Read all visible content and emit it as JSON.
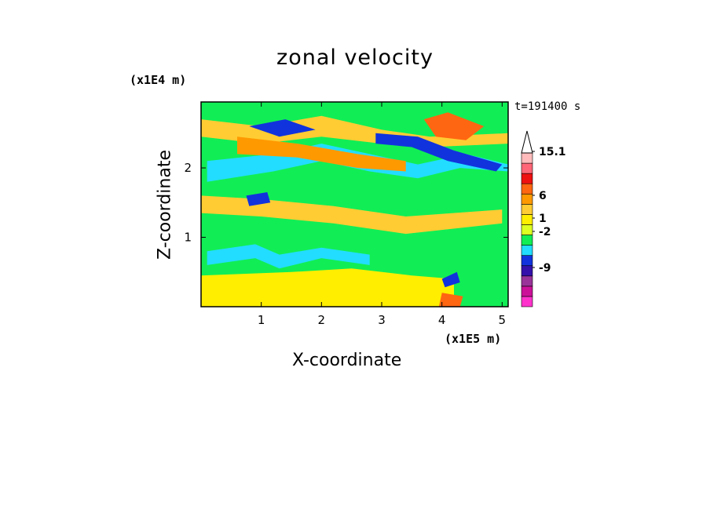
{
  "chart_data": {
    "type": "heatmap",
    "title": "zonal velocity",
    "xlabel": "X-coordinate",
    "ylabel": "Z-coordinate",
    "x_exponent_label": "(x1E5 m)",
    "y_exponent_label": "(x1E4 m)",
    "time_label": "t=191400 s",
    "xlim": [
      0,
      5.1
    ],
    "ylim": [
      0,
      2.95
    ],
    "x_ticks": [
      "1",
      "2",
      "3",
      "4",
      "5"
    ],
    "y_ticks": [
      "1",
      "2"
    ],
    "colorbar": {
      "labels": [
        "15.1",
        "6",
        "1",
        "-2",
        "-9"
      ],
      "label_values": [
        15.1,
        6,
        1,
        -2,
        -9
      ],
      "extend": "max",
      "colors": [
        "#ff33cc",
        "#cc1199",
        "#993399",
        "#3311aa",
        "#1133dd",
        "#22ddff",
        "#11ee55",
        "#ddff22",
        "#ffee00",
        "#ffcc33",
        "#ff9900",
        "#ff6611",
        "#ee1111",
        "#ff6677",
        "#ffbbbb",
        "#ffffff"
      ]
    },
    "bands": [
      {
        "value": -2.5,
        "color": "#22ddff",
        "points": [
          [
            0.1,
            2.1
          ],
          [
            1.2,
            2.2
          ],
          [
            2.0,
            2.35
          ],
          [
            2.8,
            2.2
          ],
          [
            3.6,
            2.05
          ],
          [
            4.4,
            2.2
          ],
          [
            5.1,
            2.05
          ],
          [
            5.1,
            1.95
          ],
          [
            4.3,
            2.0
          ],
          [
            3.6,
            1.85
          ],
          [
            2.8,
            1.95
          ],
          [
            2.0,
            2.1
          ],
          [
            1.2,
            1.95
          ],
          [
            0.1,
            1.8
          ]
        ]
      },
      {
        "value": 3.0,
        "color": "#ffcc33",
        "points": [
          [
            0.0,
            2.7
          ],
          [
            1.0,
            2.6
          ],
          [
            2.0,
            2.75
          ],
          [
            3.0,
            2.55
          ],
          [
            3.8,
            2.45
          ],
          [
            5.1,
            2.5
          ],
          [
            5.1,
            2.35
          ],
          [
            3.8,
            2.3
          ],
          [
            3.0,
            2.35
          ],
          [
            2.0,
            2.45
          ],
          [
            1.0,
            2.35
          ],
          [
            0.0,
            2.45
          ]
        ]
      },
      {
        "value": 4.5,
        "color": "#ff9900",
        "points": [
          [
            0.6,
            2.45
          ],
          [
            1.6,
            2.35
          ],
          [
            2.6,
            2.2
          ],
          [
            3.4,
            2.1
          ],
          [
            3.4,
            1.95
          ],
          [
            2.6,
            2.0
          ],
          [
            1.6,
            2.15
          ],
          [
            0.6,
            2.2
          ]
        ]
      },
      {
        "value": 3.0,
        "color": "#ffcc33",
        "points": [
          [
            0.0,
            1.6
          ],
          [
            1.0,
            1.55
          ],
          [
            2.2,
            1.45
          ],
          [
            3.4,
            1.3
          ],
          [
            5.0,
            1.4
          ],
          [
            5.0,
            1.2
          ],
          [
            3.4,
            1.05
          ],
          [
            2.2,
            1.2
          ],
          [
            1.0,
            1.3
          ],
          [
            0.0,
            1.35
          ]
        ]
      },
      {
        "value": 1.5,
        "color": "#ffee00",
        "points": [
          [
            0.0,
            0.45
          ],
          [
            1.5,
            0.5
          ],
          [
            2.5,
            0.55
          ],
          [
            3.5,
            0.45
          ],
          [
            4.2,
            0.4
          ],
          [
            4.2,
            0.0
          ],
          [
            0.0,
            0.0
          ]
        ]
      },
      {
        "value": -2.5,
        "color": "#22ddff",
        "points": [
          [
            0.1,
            0.8
          ],
          [
            0.9,
            0.9
          ],
          [
            1.3,
            0.75
          ],
          [
            2.0,
            0.85
          ],
          [
            2.8,
            0.75
          ],
          [
            2.8,
            0.6
          ],
          [
            2.0,
            0.7
          ],
          [
            1.3,
            0.55
          ],
          [
            0.9,
            0.7
          ],
          [
            0.1,
            0.6
          ]
        ]
      },
      {
        "value": 9.0,
        "color": "#ff6611",
        "points": [
          [
            3.7,
            2.7
          ],
          [
            4.1,
            2.8
          ],
          [
            4.7,
            2.6
          ],
          [
            4.4,
            2.4
          ],
          [
            3.9,
            2.45
          ]
        ]
      },
      {
        "value": -6.0,
        "color": "#1133dd",
        "points": [
          [
            0.8,
            2.6
          ],
          [
            1.4,
            2.7
          ],
          [
            1.9,
            2.55
          ],
          [
            1.3,
            2.45
          ]
        ]
      },
      {
        "value": -6.0,
        "color": "#1133dd",
        "points": [
          [
            2.9,
            2.5
          ],
          [
            3.6,
            2.45
          ],
          [
            4.2,
            2.25
          ],
          [
            5.0,
            2.05
          ],
          [
            4.9,
            1.95
          ],
          [
            4.1,
            2.1
          ],
          [
            3.5,
            2.3
          ],
          [
            2.9,
            2.35
          ]
        ]
      },
      {
        "value": -6.0,
        "color": "#1133dd",
        "points": [
          [
            0.75,
            1.6
          ],
          [
            1.1,
            1.65
          ],
          [
            1.15,
            1.5
          ],
          [
            0.8,
            1.45
          ]
        ]
      },
      {
        "value": -6.0,
        "color": "#1133dd",
        "points": [
          [
            4.0,
            0.4
          ],
          [
            4.25,
            0.5
          ],
          [
            4.3,
            0.35
          ],
          [
            4.05,
            0.28
          ]
        ]
      },
      {
        "value": 9.0,
        "color": "#ff6611",
        "points": [
          [
            4.0,
            0.2
          ],
          [
            4.35,
            0.15
          ],
          [
            4.3,
            0.0
          ],
          [
            3.95,
            0.0
          ]
        ]
      }
    ]
  }
}
